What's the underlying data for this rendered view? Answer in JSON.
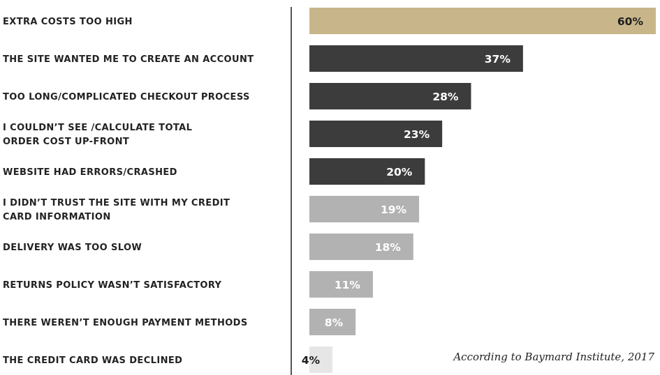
{
  "chart_data": {
    "type": "bar",
    "orientation": "horizontal",
    "categories": [
      [
        "EXTRA COSTS TOO HIGH"
      ],
      [
        "THE SITE WANTED ME TO CREATE AN ACCOUNT"
      ],
      [
        "TOO LONG/COMPLICATED CHECKOUT PROCESS"
      ],
      [
        "I COULDN’T SEE /CALCULATE TOTAL",
        "ORDER COST UP-FRONT"
      ],
      [
        "WEBSITE HAD ERRORS/CRASHED"
      ],
      [
        "I DIDN’T TRUST THE SITE WITH MY CREDIT",
        "CARD INFORMATION"
      ],
      [
        "DELIVERY WAS TOO SLOW"
      ],
      [
        "RETURNS POLICY WASN’T SATISFACTORY"
      ],
      [
        "THERE WEREN’T ENOUGH PAYMENT METHODS"
      ],
      [
        "THE CREDIT CARD WAS DECLINED"
      ]
    ],
    "values": [
      60,
      37,
      28,
      23,
      20,
      19,
      18,
      11,
      8,
      4
    ],
    "value_labels": [
      "60%",
      "37%",
      "28%",
      "23%",
      "20%",
      "19%",
      "18%",
      "11%",
      "8%",
      "4%"
    ],
    "bar_colors": [
      "#c8b68a",
      "#3c3c3c",
      "#3c3c3c",
      "#3c3c3c",
      "#3c3c3c",
      "#b2b2b2",
      "#b2b2b2",
      "#b2b2b2",
      "#b2b2b2",
      "#e6e6e6"
    ],
    "label_colors": [
      "#1e1e1e",
      "#ffffff",
      "#ffffff",
      "#ffffff",
      "#ffffff",
      "#ffffff",
      "#ffffff",
      "#ffffff",
      "#ffffff",
      "#1e1e1e"
    ],
    "xlim": [
      0,
      60
    ],
    "grid": false,
    "source": "According to Baymard Institute, 2017"
  }
}
